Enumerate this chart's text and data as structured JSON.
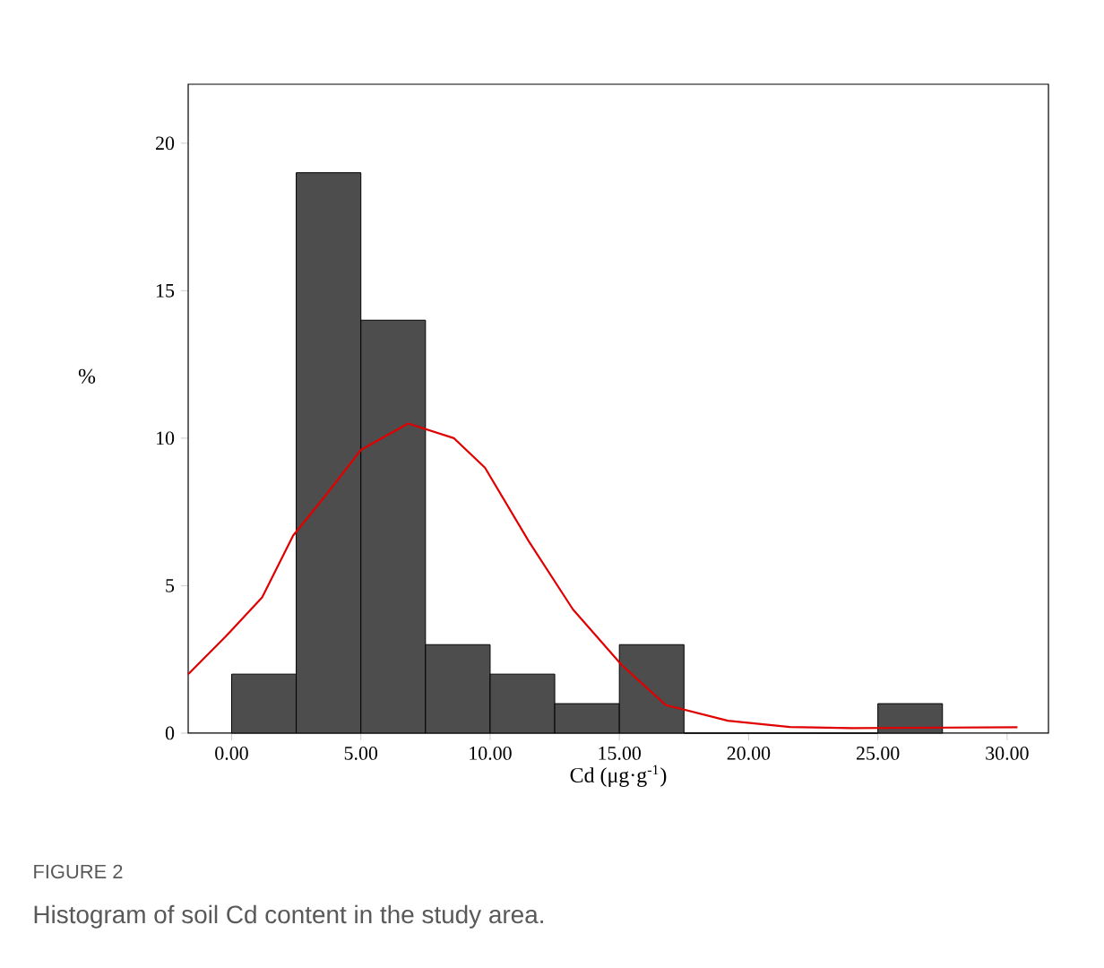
{
  "chart_data": {
    "type": "histogram",
    "xlabel": "Cd (μg·g$^{-1}$)",
    "ylabel": "%",
    "annotations": [
      "FIGURE 2",
      "Histogram of soil Cd content in the study area."
    ],
    "series": [
      {
        "color": "#4d4d4d",
        "bins": [
          0,
          2.5,
          5,
          7.5,
          10,
          12.5,
          15,
          17.5,
          20,
          22.5,
          25,
          27.5
        ],
        "values": [
          2,
          19,
          14,
          3,
          2,
          1,
          3,
          0,
          0,
          0,
          1
        ]
      },
      {
        "type": "line",
        "color": "#e00000",
        "x": [
          -1.68,
          -0.26,
          1.18,
          2.38,
          3.58,
          5.0,
          6.83,
          8.6,
          9.8,
          11.5,
          13.2,
          15.1,
          16.8,
          19.2,
          21.6,
          24.0,
          30.4
        ],
        "values": [
          2.0,
          3.25,
          4.6,
          6.7,
          8.0,
          9.6,
          10.5,
          10.0,
          9.0,
          6.5,
          4.2,
          2.3,
          0.95,
          0.42,
          0.21,
          0.17,
          0.2
        ]
      }
    ],
    "xlim": [
      -1.68,
      31.6
    ],
    "ylim": [
      0,
      22
    ],
    "xticks": [
      {
        "value": 0,
        "label": "0.00"
      },
      {
        "value": 5,
        "label": "5.00"
      },
      {
        "value": 10,
        "label": "10.00"
      },
      {
        "value": 15,
        "label": "15.00"
      },
      {
        "value": 20,
        "label": "20.00"
      },
      {
        "value": 25,
        "label": "25.00"
      },
      {
        "value": 30,
        "label": "30.00"
      }
    ],
    "yticks": [
      0,
      5,
      10,
      15,
      20
    ],
    "grid": false
  }
}
